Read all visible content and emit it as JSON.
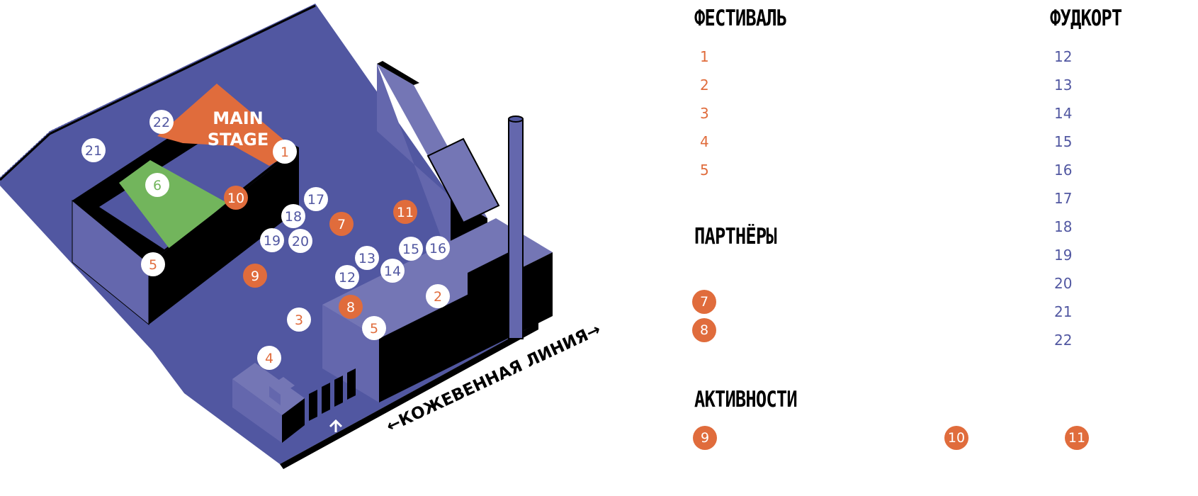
{
  "colors": {
    "ground": "#5157a1",
    "building_light": "#7476b5",
    "building_mid": "#6467ad",
    "shadow": "#000000",
    "orange": "#e06c3c",
    "green": "#72b55c",
    "white": "#ffffff"
  },
  "map": {
    "stage_label": [
      "MAIN",
      "STAGE"
    ],
    "street_label": "←КОЖЕВЕННАЯ ЛИНИЯ→",
    "markers": [
      {
        "label": "1",
        "kind": "orange_text"
      },
      {
        "label": "2",
        "kind": "orange_text"
      },
      {
        "label": "3",
        "kind": "orange_text"
      },
      {
        "label": "4",
        "kind": "orange_text"
      },
      {
        "label": "5",
        "kind": "orange_text"
      },
      {
        "label": "5",
        "kind": "orange_text"
      },
      {
        "label": "6",
        "kind": "green_text"
      },
      {
        "label": "7",
        "kind": "orange_fill"
      },
      {
        "label": "8",
        "kind": "orange_fill"
      },
      {
        "label": "9",
        "kind": "orange_fill"
      },
      {
        "label": "10",
        "kind": "orange_fill"
      },
      {
        "label": "11",
        "kind": "orange_fill"
      },
      {
        "label": "12",
        "kind": "blue_text"
      },
      {
        "label": "13",
        "kind": "blue_text"
      },
      {
        "label": "14",
        "kind": "blue_text"
      },
      {
        "label": "15",
        "kind": "blue_text"
      },
      {
        "label": "16",
        "kind": "blue_text"
      },
      {
        "label": "17",
        "kind": "blue_text"
      },
      {
        "label": "18",
        "kind": "blue_text"
      },
      {
        "label": "19",
        "kind": "blue_text"
      },
      {
        "label": "20",
        "kind": "blue_text"
      },
      {
        "label": "21",
        "kind": "blue_text"
      },
      {
        "label": "22",
        "kind": "blue_text"
      }
    ]
  },
  "legend": {
    "festival": {
      "title": "ФЕСТИВАЛЬ",
      "items": [
        "1",
        "2",
        "3",
        "4",
        "5"
      ]
    },
    "partners": {
      "title": "ПАРТНЁРЫ",
      "items": [
        "7",
        "8"
      ]
    },
    "activities": {
      "title": "АКТИВНОСТИ",
      "items": [
        "9",
        "10",
        "11"
      ]
    },
    "foodcourt": {
      "title": "ФУДКОРТ",
      "items": [
        "12",
        "13",
        "14",
        "15",
        "16",
        "17",
        "18",
        "19",
        "20",
        "21",
        "22"
      ]
    }
  }
}
